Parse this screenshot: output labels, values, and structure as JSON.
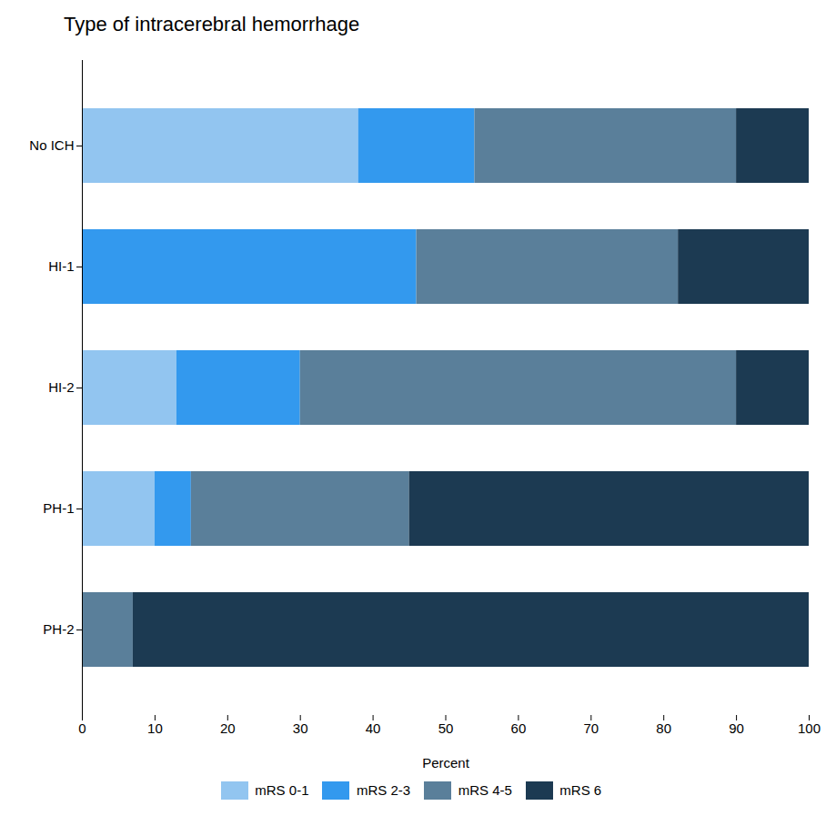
{
  "chart_data": {
    "type": "bar",
    "orientation": "horizontal",
    "stacked": true,
    "title": "Type of intracerebral hemorrhage",
    "categories": [
      "No ICH",
      "HI-1",
      "HI-2",
      "PH-1",
      "PH-2"
    ],
    "series": [
      {
        "name": "mRS 0-1",
        "color": "#92c5f0",
        "values": [
          38,
          0,
          13,
          10,
          0
        ]
      },
      {
        "name": "mRS 2-3",
        "color": "#3399ee",
        "values": [
          16,
          46,
          17,
          5,
          0
        ]
      },
      {
        "name": "mRS 4-5",
        "color": "#5a7f9a",
        "values": [
          36,
          36,
          60,
          30,
          7
        ]
      },
      {
        "name": "mRS 6",
        "color": "#1c3a52",
        "values": [
          10,
          18,
          10,
          55,
          93
        ]
      }
    ],
    "xlabel": "Percent",
    "xlim": [
      0,
      100
    ],
    "xticks": [
      0,
      10,
      20,
      30,
      40,
      50,
      60,
      70,
      80,
      90,
      100
    ],
    "grid": false,
    "legend": "bottom"
  }
}
